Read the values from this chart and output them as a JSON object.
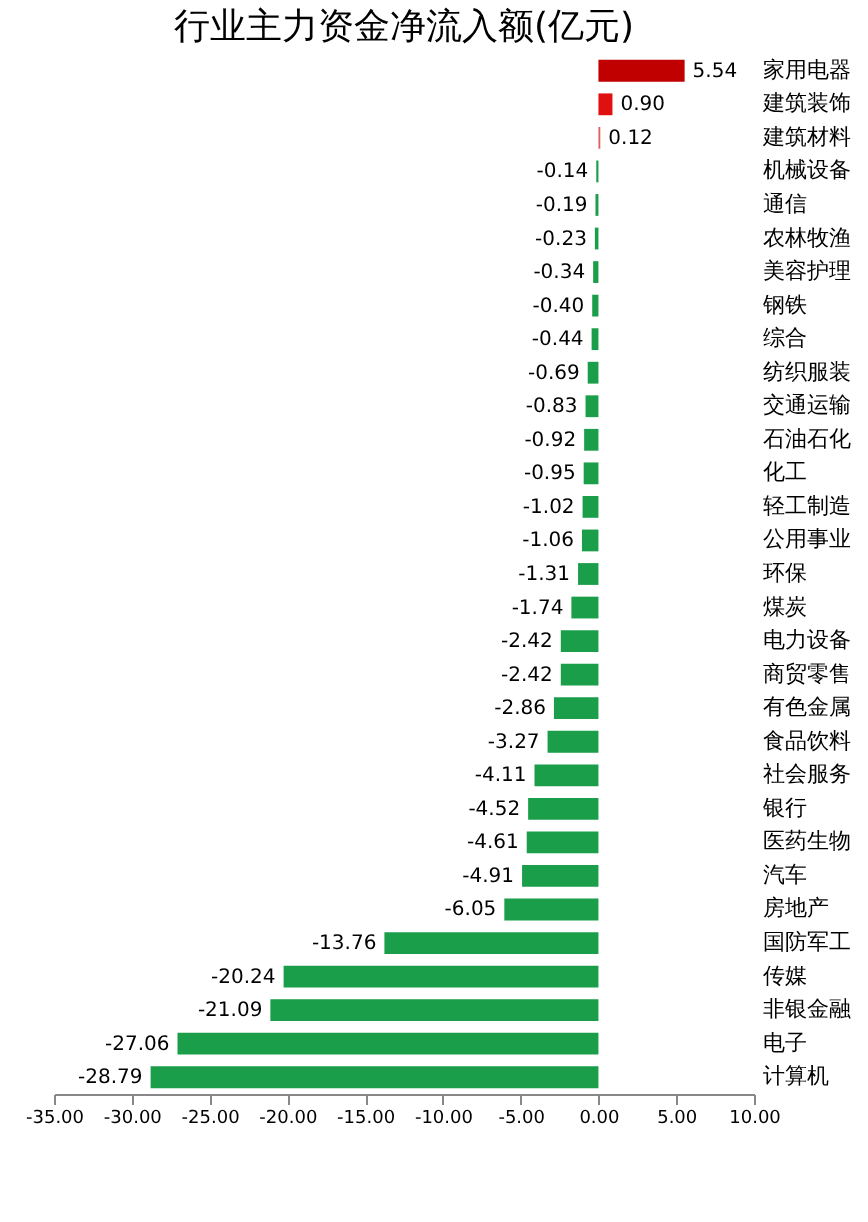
{
  "chart_data": {
    "type": "bar",
    "orientation": "horizontal",
    "title": "行业主力资金净流入额(亿元)",
    "categories": [
      "家用电器",
      "建筑装饰",
      "建筑材料",
      "机械设备",
      "通信",
      "农林牧渔",
      "美容护理",
      "钢铁",
      "综合",
      "纺织服装",
      "交通运输",
      "石油石化",
      "化工",
      "轻工制造",
      "公用事业",
      "环保",
      "煤炭",
      "电力设备",
      "商贸零售",
      "有色金属",
      "食品饮料",
      "社会服务",
      "银行",
      "医药生物",
      "汽车",
      "房地产",
      "国防军工",
      "传媒",
      "非银金融",
      "电子",
      "计算机"
    ],
    "values": [
      5.54,
      0.9,
      0.12,
      -0.14,
      -0.19,
      -0.23,
      -0.34,
      -0.4,
      -0.44,
      -0.69,
      -0.83,
      -0.92,
      -0.95,
      -1.02,
      -1.06,
      -1.31,
      -1.74,
      -2.42,
      -2.42,
      -2.86,
      -3.27,
      -4.11,
      -4.52,
      -4.61,
      -4.91,
      -6.05,
      -13.76,
      -20.24,
      -21.09,
      -27.06,
      -28.79
    ],
    "value_labels": [
      "5.54",
      "0.90",
      "0.12",
      "-0.14",
      "-0.19",
      "-0.23",
      "-0.34",
      "-0.40",
      "-0.44",
      "-0.69",
      "-0.83",
      "-0.92",
      "-0.95",
      "-1.02",
      "-1.06",
      "-1.31",
      "-1.74",
      "-2.42",
      "-2.42",
      "-2.86",
      "-3.27",
      "-4.11",
      "-4.52",
      "-4.61",
      "-4.91",
      "-6.05",
      "-13.76",
      "-20.24",
      "-21.09",
      "-27.06",
      "-28.79"
    ],
    "colors": [
      "#c00000",
      "#e01010",
      "#e06060",
      "#1a9e4a",
      "#1a9e4a",
      "#1a9e4a",
      "#1a9e4a",
      "#1a9e4a",
      "#1a9e4a",
      "#1a9e4a",
      "#1a9e4a",
      "#1a9e4a",
      "#1a9e4a",
      "#1a9e4a",
      "#1a9e4a",
      "#1a9e4a",
      "#1a9e4a",
      "#1a9e4a",
      "#1a9e4a",
      "#1a9e4a",
      "#1a9e4a",
      "#1a9e4a",
      "#1a9e4a",
      "#1a9e4a",
      "#1a9e4a",
      "#1a9e4a",
      "#1a9e4a",
      "#1a9e4a",
      "#1a9e4a",
      "#1a9e4a",
      "#1a9e4a"
    ],
    "xlim": [
      -35,
      10
    ],
    "xticks": [
      {
        "value": -35,
        "label": "-35.00"
      },
      {
        "value": -30,
        "label": "-30.00"
      },
      {
        "value": -25,
        "label": "-25.00"
      },
      {
        "value": -20,
        "label": "-20.00"
      },
      {
        "value": -15,
        "label": "-15.00"
      },
      {
        "value": -10,
        "label": "-10.00"
      },
      {
        "value": -5,
        "label": "-5.00"
      },
      {
        "value": 0,
        "label": "0.00"
      },
      {
        "value": 5,
        "label": "5.00"
      },
      {
        "value": 10,
        "label": "10.00"
      }
    ],
    "grid": false
  }
}
